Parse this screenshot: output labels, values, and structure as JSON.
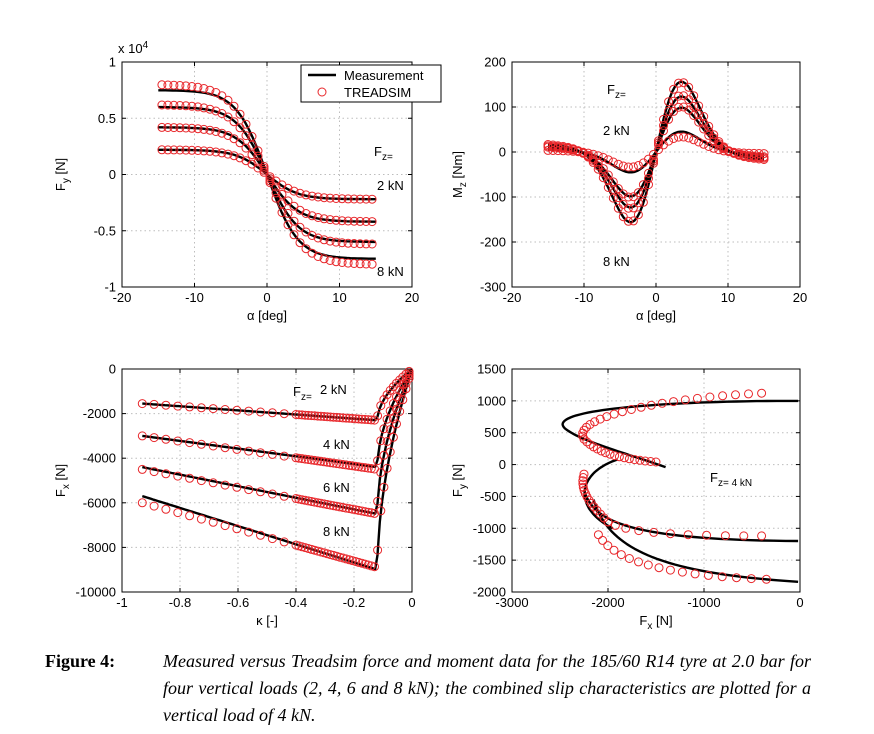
{
  "chart_data": [
    {
      "type": "line",
      "id": "fy-alpha",
      "xlabel": "α [deg]",
      "ylabel": "F_y [N]",
      "xlim": [
        -20,
        20
      ],
      "ylim": [
        -10000,
        10000
      ],
      "xticks": [
        -20,
        -10,
        0,
        10,
        20
      ],
      "yticks": [
        -10000,
        -5000,
        0,
        5000,
        10000
      ],
      "ytick_labels": [
        "-1",
        "-0.5",
        "0",
        "0.5",
        "1"
      ],
      "y_multiplier": "x 10",
      "y_multiplier_exp": "4",
      "grid": true,
      "legend": {
        "placement": "top-right",
        "entries": [
          "Measurement",
          "TREADSIM"
        ]
      },
      "annotations": [
        "F_z=",
        "2 kN",
        "8 kN"
      ],
      "series": [
        {
          "name": "Measurement",
          "style": "line",
          "loads_kN": [
            2,
            4,
            6,
            8
          ],
          "x_range": [
            -15,
            15
          ],
          "plateau_magnitudes": [
            2200,
            4200,
            6000,
            7500
          ]
        },
        {
          "name": "TREADSIM",
          "style": "markers",
          "loads_kN": [
            2,
            4,
            6,
            8
          ],
          "x_range": [
            -15,
            15
          ],
          "plateau_magnitudes": [
            2200,
            4200,
            6200,
            8000
          ]
        }
      ]
    },
    {
      "type": "line",
      "id": "mz-alpha",
      "xlabel": "α [deg]",
      "ylabel": "M_z [Nm]",
      "xlim": [
        -20,
        20
      ],
      "ylim": [
        -300,
        200
      ],
      "xticks": [
        -20,
        -10,
        0,
        10,
        20
      ],
      "yticks": [
        -300,
        -200,
        -100,
        0,
        100,
        200
      ],
      "grid": true,
      "annotations": [
        "F_z=",
        "2 kN",
        "8 kN"
      ],
      "series": [
        {
          "name": "Measurement",
          "style": "line",
          "peaks_Nm": [
            55,
            120,
            150,
            190
          ]
        },
        {
          "name": "TREADSIM",
          "style": "markers",
          "peaks_Nm": [
            40,
            120,
            150,
            185
          ]
        }
      ]
    },
    {
      "type": "line",
      "id": "fx-kappa",
      "xlabel": "κ [-]",
      "ylabel": "F_x [N]",
      "xlim": [
        -1,
        0
      ],
      "ylim": [
        -10000,
        0
      ],
      "xticks": [
        -1,
        -0.8,
        -0.6,
        -0.4,
        -0.2,
        0
      ],
      "xtick_labels": [
        "-1",
        "-0.8",
        "-0.6",
        "-0.4",
        "-0.2",
        "0"
      ],
      "yticks": [
        -10000,
        -8000,
        -6000,
        -4000,
        -2000,
        0
      ],
      "grid": true,
      "annotations": [
        "F_z=",
        "2 kN",
        "4 kN",
        "6 kN",
        "8 kN"
      ],
      "series": [
        {
          "name": "Measurement",
          "style": "line",
          "values_at_kappa_-0.93": [
            -1550,
            -3000,
            -4400,
            -5700
          ],
          "values_at_peak": [
            -2300,
            -4400,
            -6500,
            -9000
          ]
        },
        {
          "name": "TREADSIM",
          "style": "markers",
          "values_at_kappa_-0.93": [
            -1550,
            -3000,
            -4500,
            -6000
          ],
          "values_at_peak": [
            -2300,
            -4500,
            -6500,
            -8900
          ]
        }
      ]
    },
    {
      "type": "line",
      "id": "fy-fx",
      "xlabel": "F_x [N]",
      "ylabel": "F_y [N]",
      "xlim": [
        -3000,
        0
      ],
      "ylim": [
        -2000,
        1500
      ],
      "xticks": [
        -3000,
        -2000,
        -1000,
        0
      ],
      "yticks": [
        -2000,
        -1500,
        -1000,
        -500,
        0,
        500,
        1000,
        1500
      ],
      "grid": true,
      "annotations": [
        "F_z= 4 kN"
      ],
      "series": [
        {
          "name": "Measurement",
          "style": "line",
          "load_kN": 4
        },
        {
          "name": "TREADSIM",
          "style": "markers",
          "load_kN": 4
        }
      ]
    }
  ],
  "caption": {
    "label": "Figure 4:",
    "text": "Measured versus Treadsim force and moment data for the 185/60 R14 tyre at 2.0 bar for four vertical loads (2, 4, 6 and 8 kN); the combined slip characteristics are plotted for a vertical load of 4 kN."
  },
  "colors": {
    "measurement": "#000000",
    "treadsim": "#e8262a",
    "grid": "#bdbdbd"
  }
}
